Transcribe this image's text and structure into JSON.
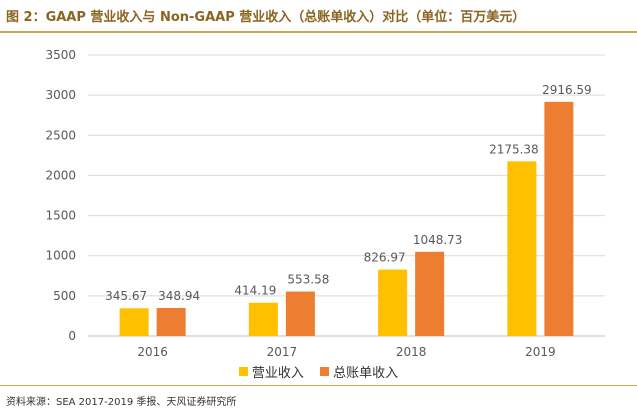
{
  "title": "图 2：GAAP 营业收入与 Non-GAAP 营业收入（总账单收入）对比（单位：百万美元）",
  "source": "资料来源：SEA 2017-2019 季报、天风证券研究所",
  "colors": {
    "series1": "#ffc000",
    "series2": "#ed7d31",
    "grid": "#d9d9d9",
    "axis": "#bfbfbf",
    "text": "#595959",
    "accent": "#c9a55a"
  },
  "chart_data": {
    "type": "bar",
    "categories": [
      "2016",
      "2017",
      "2018",
      "2019"
    ],
    "series": [
      {
        "name": "营业收入",
        "values": [
          345.67,
          414.19,
          826.97,
          2175.38
        ]
      },
      {
        "name": "总账单收入",
        "values": [
          348.94,
          553.58,
          1048.73,
          2916.59
        ]
      }
    ],
    "value_labels": [
      [
        "345.67",
        "414.19",
        "826.97",
        "2175.38"
      ],
      [
        "348.94",
        "553.58",
        "1048.73",
        "2916.59"
      ]
    ],
    "yticks": [
      0,
      500,
      1000,
      1500,
      2000,
      2500,
      3000,
      3500
    ],
    "ylim": [
      0,
      3500
    ],
    "grid": true,
    "legend_position": "bottom"
  }
}
